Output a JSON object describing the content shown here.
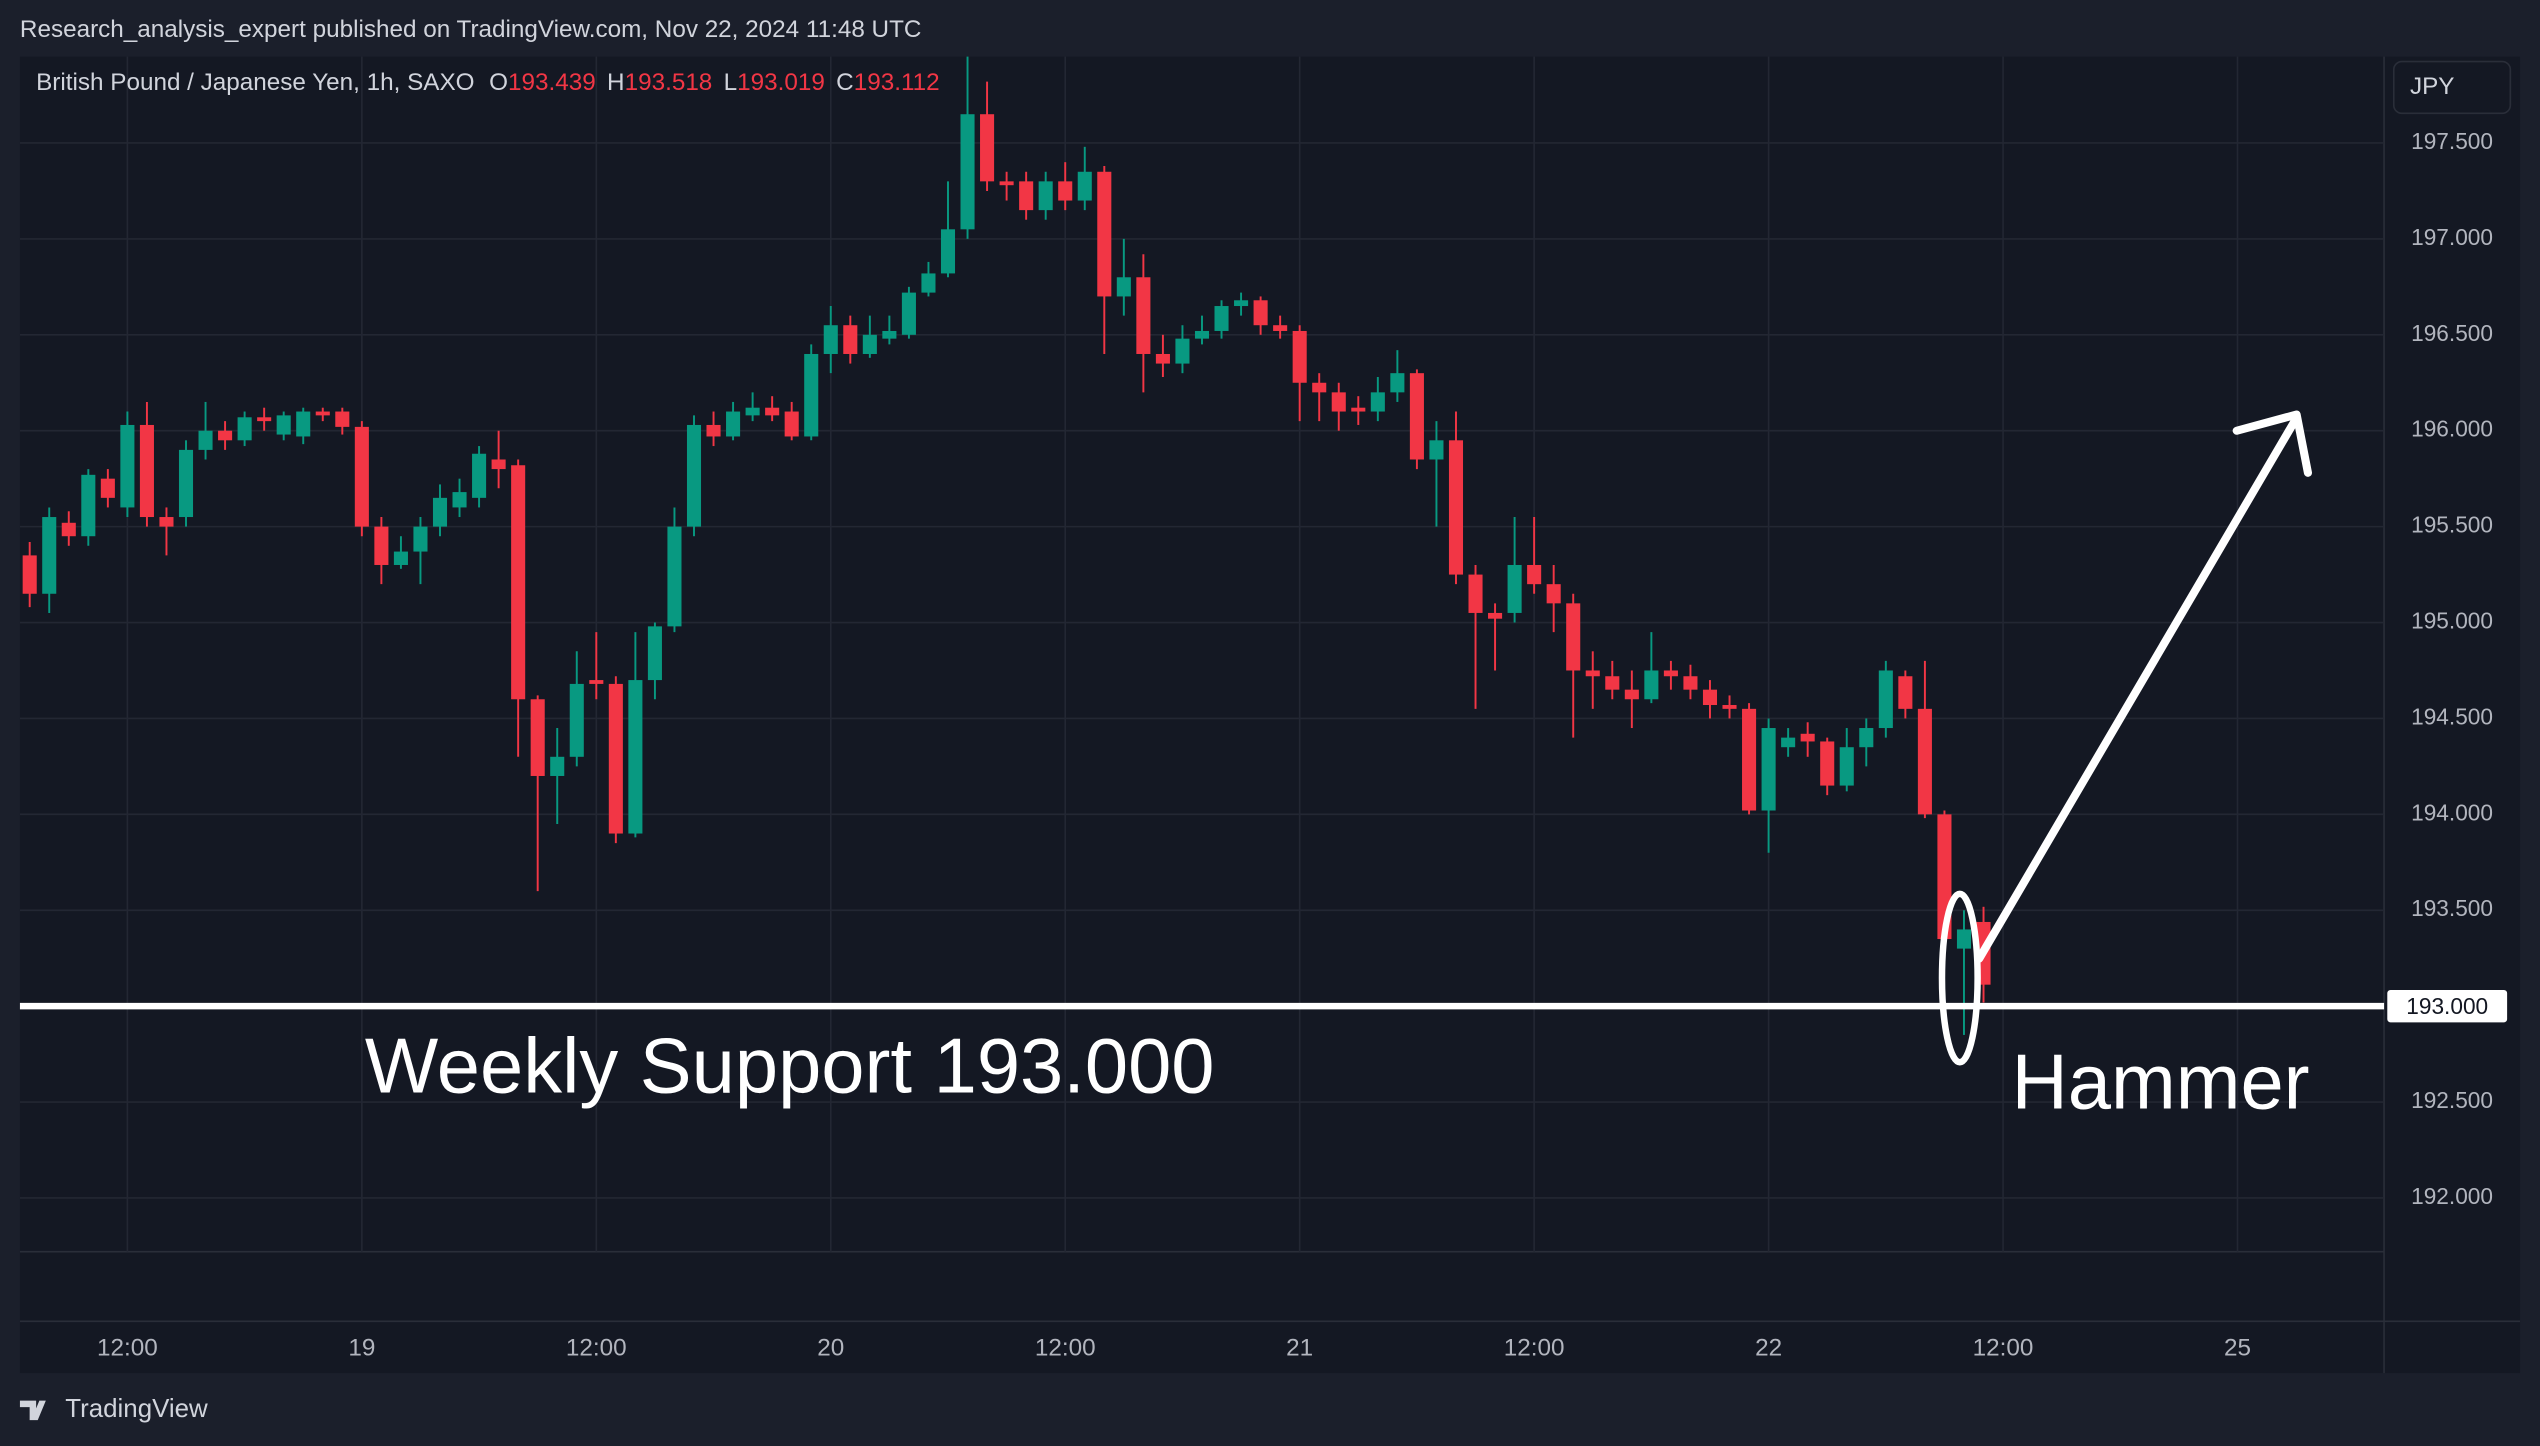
{
  "header": "Research_analysis_expert published on TradingView.com, Nov 22, 2024 11:48 UTC",
  "brand": "TradingView",
  "chart_data": {
    "type": "candlestick",
    "legend": {
      "title": "British Pound / Japanese Yen, 1h, SAXO",
      "items": [
        {
          "label": "O",
          "value": 193.439
        },
        {
          "label": "H",
          "value": 193.518
        },
        {
          "label": "L",
          "value": 193.019
        },
        {
          "label": "C",
          "value": 193.112
        }
      ]
    },
    "currency": "JPY",
    "up_color": "#089981",
    "down_color": "#f23645",
    "grid": true,
    "open": [
      195.35,
      195.15,
      195.52,
      195.45,
      195.75,
      195.6,
      196.03,
      195.55,
      195.55,
      195.9,
      196.0,
      195.95,
      196.07,
      195.98,
      195.97,
      196.1,
      196.1,
      196.02,
      195.5,
      195.3,
      195.37,
      195.5,
      195.6,
      195.65,
      195.85,
      195.82,
      194.6,
      194.2,
      194.3,
      194.7,
      194.68,
      193.9,
      194.7,
      194.98,
      195.5,
      196.03,
      195.97,
      196.08,
      196.12,
      196.1,
      195.97,
      196.4,
      196.55,
      196.4,
      196.48,
      196.5,
      196.72,
      196.82,
      197.05,
      197.65,
      197.3,
      197.3,
      197.15,
      197.3,
      197.2,
      197.35,
      196.7,
      196.8,
      196.4,
      196.35,
      196.48,
      196.52,
      196.65,
      196.68,
      196.55,
      196.52,
      196.25,
      196.2,
      196.12,
      196.1,
      196.2,
      196.3,
      195.85,
      195.95,
      195.25,
      195.05,
      195.05,
      195.3,
      195.2,
      195.1,
      194.75,
      194.72,
      194.65,
      194.6,
      194.75,
      194.72,
      194.65,
      194.57,
      194.55,
      194.02,
      194.35,
      194.42,
      194.38,
      194.15,
      194.35,
      194.45,
      194.72,
      194.55,
      194.0,
      193.3,
      193.439
    ],
    "high": [
      195.42,
      195.6,
      195.58,
      195.8,
      195.8,
      196.1,
      196.15,
      195.6,
      195.95,
      196.15,
      196.05,
      196.1,
      196.12,
      196.1,
      196.12,
      196.12,
      196.12,
      196.05,
      195.55,
      195.45,
      195.55,
      195.72,
      195.75,
      195.92,
      196.0,
      195.85,
      194.62,
      194.45,
      194.85,
      194.95,
      194.72,
      194.95,
      195.0,
      195.6,
      196.08,
      196.1,
      196.15,
      196.2,
      196.18,
      196.15,
      196.45,
      196.65,
      196.6,
      196.6,
      196.6,
      196.75,
      196.88,
      197.3,
      197.95,
      197.82,
      197.35,
      197.35,
      197.35,
      197.4,
      197.48,
      197.38,
      197.0,
      196.92,
      196.5,
      196.55,
      196.6,
      196.68,
      196.72,
      196.7,
      196.6,
      196.55,
      196.3,
      196.25,
      196.18,
      196.28,
      196.42,
      196.32,
      196.05,
      196.1,
      195.3,
      195.1,
      195.55,
      195.55,
      195.3,
      195.15,
      194.85,
      194.8,
      194.75,
      194.95,
      194.8,
      194.78,
      194.7,
      194.62,
      194.58,
      194.5,
      194.45,
      194.48,
      194.4,
      194.45,
      194.5,
      194.8,
      194.75,
      194.8,
      194.02,
      193.5,
      193.518
    ],
    "low": [
      195.08,
      195.05,
      195.4,
      195.4,
      195.6,
      195.55,
      195.5,
      195.35,
      195.5,
      195.85,
      195.9,
      195.92,
      196.0,
      195.95,
      195.93,
      196.05,
      195.98,
      195.45,
      195.2,
      195.28,
      195.2,
      195.45,
      195.55,
      195.6,
      195.7,
      194.3,
      193.6,
      193.95,
      194.25,
      194.6,
      193.85,
      193.88,
      194.6,
      194.95,
      195.45,
      195.92,
      195.95,
      196.05,
      196.05,
      195.95,
      195.95,
      196.3,
      196.35,
      196.38,
      196.45,
      196.48,
      196.7,
      196.8,
      197.0,
      197.25,
      197.2,
      197.1,
      197.1,
      197.15,
      197.15,
      196.4,
      196.6,
      196.2,
      196.28,
      196.3,
      196.45,
      196.48,
      196.6,
      196.5,
      196.48,
      196.05,
      196.05,
      196.0,
      196.03,
      196.05,
      196.15,
      195.8,
      195.5,
      195.2,
      194.55,
      194.75,
      195.0,
      195.15,
      194.95,
      194.4,
      194.55,
      194.6,
      194.45,
      194.58,
      194.65,
      194.6,
      194.5,
      194.5,
      194.0,
      193.8,
      194.3,
      194.3,
      194.1,
      194.12,
      194.25,
      194.4,
      194.5,
      193.98,
      193.3,
      192.85,
      193.019
    ],
    "close": [
      195.15,
      195.55,
      195.45,
      195.77,
      195.65,
      196.03,
      195.55,
      195.5,
      195.9,
      196.0,
      195.95,
      196.07,
      196.05,
      196.08,
      196.1,
      196.08,
      196.02,
      195.5,
      195.3,
      195.37,
      195.5,
      195.65,
      195.68,
      195.88,
      195.8,
      194.6,
      194.2,
      194.3,
      194.68,
      194.68,
      193.9,
      194.7,
      194.98,
      195.5,
      196.03,
      195.97,
      196.1,
      196.12,
      196.08,
      195.97,
      196.4,
      196.55,
      196.4,
      196.5,
      196.52,
      196.72,
      196.82,
      197.05,
      197.65,
      197.3,
      197.28,
      197.15,
      197.3,
      197.2,
      197.35,
      196.7,
      196.8,
      196.4,
      196.35,
      196.48,
      196.52,
      196.65,
      196.68,
      196.55,
      196.52,
      196.25,
      196.2,
      196.1,
      196.1,
      196.2,
      196.3,
      195.85,
      195.95,
      195.25,
      195.05,
      195.02,
      195.3,
      195.2,
      195.1,
      194.75,
      194.72,
      194.65,
      194.6,
      194.75,
      194.72,
      194.65,
      194.57,
      194.55,
      194.02,
      194.45,
      194.4,
      194.38,
      194.15,
      194.35,
      194.45,
      194.75,
      194.55,
      194.0,
      193.35,
      193.4,
      193.112
    ],
    "xlim": [
      -0.5,
      120.5
    ],
    "xticks": [
      {
        "value": 5,
        "label": "12:00"
      },
      {
        "value": 17,
        "label": "19"
      },
      {
        "value": 29,
        "label": "12:00"
      },
      {
        "value": 41,
        "label": "20"
      },
      {
        "value": 53,
        "label": "12:00"
      },
      {
        "value": 65,
        "label": "21"
      },
      {
        "value": 77,
        "label": "12:00"
      },
      {
        "value": 89,
        "label": "22"
      },
      {
        "value": 101,
        "label": "12:00"
      },
      {
        "value": 113,
        "label": "25"
      }
    ],
    "ylim": [
      191.72,
      197.95
    ],
    "yticks": [
      {
        "value": 192,
        "label": "192.000"
      },
      {
        "value": 192.5,
        "label": "192.500"
      },
      {
        "value": 193,
        "label": "193.000"
      },
      {
        "value": 193.5,
        "label": "193.500"
      },
      {
        "value": 194,
        "label": "194.000"
      },
      {
        "value": 194.5,
        "label": "194.500"
      },
      {
        "value": 195,
        "label": "195.000"
      },
      {
        "value": 195.5,
        "label": "195.500"
      },
      {
        "value": 196,
        "label": "196.000"
      },
      {
        "value": 196.5,
        "label": "196.500"
      },
      {
        "value": 197,
        "label": "197.000"
      },
      {
        "value": 197.5,
        "label": "197.500"
      }
    ],
    "hline": {
      "value": 193,
      "label": "193.000"
    },
    "annotations": [
      "Weekly Support 193.000",
      "Hammer"
    ]
  }
}
